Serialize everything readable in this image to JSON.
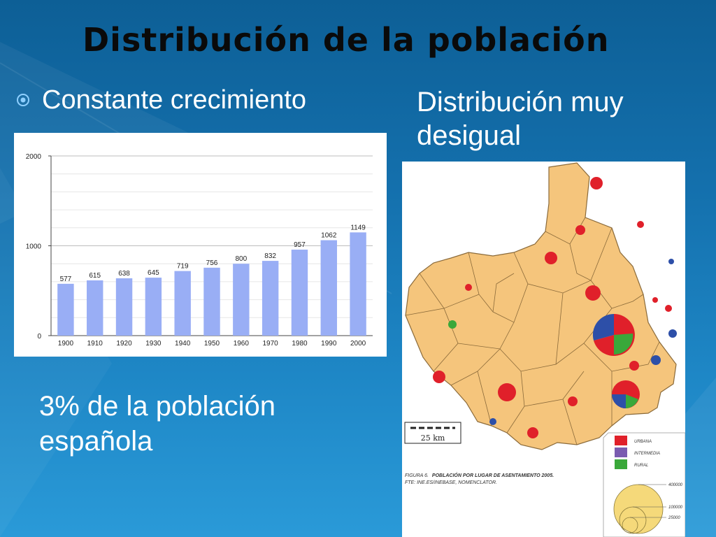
{
  "slide": {
    "title": "Distribución de la población",
    "bullet": "Constante crecimiento",
    "right_text": "Distribución muy desigual",
    "bottom_text": "3% de la población española",
    "background_color": "#1877b7"
  },
  "chart_data": {
    "type": "bar",
    "categories": [
      "1900",
      "1910",
      "1920",
      "1930",
      "1940",
      "1950",
      "1960",
      "1970",
      "1980",
      "1990",
      "2000"
    ],
    "values": [
      577,
      615,
      638,
      645,
      719,
      756,
      800,
      832,
      957,
      1062,
      1149
    ],
    "ylim": [
      0,
      2000
    ],
    "yticks": [
      0,
      1000,
      2000
    ],
    "grid": true,
    "bar_color": "#99aef5"
  },
  "map": {
    "scale_label": "25 km",
    "caption_prefix": "FIGURA 6.",
    "caption_title": "POBLACIÓN POR LUGAR DE ASENTAMIENTO 2005.",
    "caption_source": "FTE: INE.ES/INEBASE, NOMENCLATOR.",
    "legend": {
      "categories": [
        {
          "label": "URBANA",
          "color": "#e0202a"
        },
        {
          "label": "INTERMEDIA",
          "color": "#7a5cb0"
        },
        {
          "label": "RURAL",
          "color": "#3aa83a"
        }
      ],
      "sizes": [
        "400000",
        "100000",
        "25000"
      ]
    },
    "land_color": "#f5c57c",
    "sea_color": "#ffffff"
  }
}
